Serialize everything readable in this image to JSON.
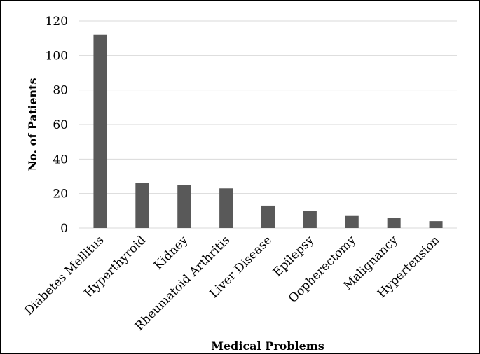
{
  "chart_data": {
    "type": "bar",
    "categories": [
      "Diabetes Mellitus",
      "Hyperthyroid",
      "Kidney",
      "Rheumatoid Arthritis",
      "Liver Disease",
      "Epilepsy",
      "Oopherectomy",
      "Malignancy",
      "Hypertension"
    ],
    "values": [
      112,
      26,
      25,
      23,
      13,
      10,
      7,
      6,
      4
    ],
    "title": "",
    "xlabel": "Medical Problems",
    "ylabel": "No. of Patients",
    "ylim": [
      0,
      120
    ],
    "yticks": [
      0,
      20,
      40,
      60,
      80,
      100,
      120
    ],
    "grid": true,
    "legend": "none",
    "bar_color": "#595959"
  }
}
